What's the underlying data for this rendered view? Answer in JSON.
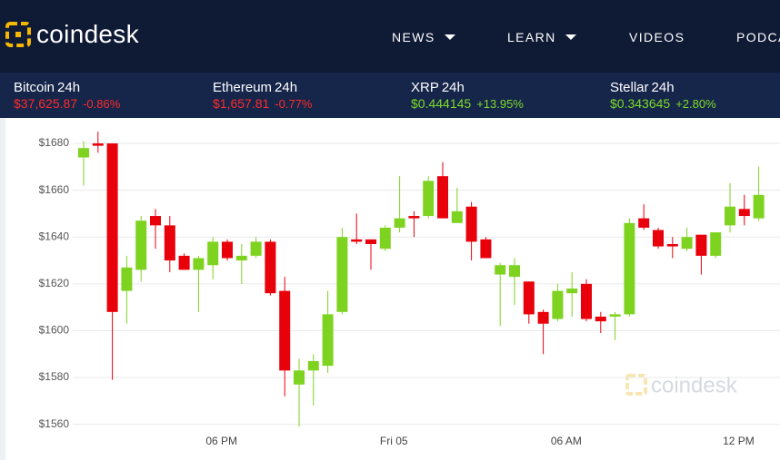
{
  "header": {
    "logo": "coindesk",
    "nav": [
      "NEWS",
      "LEARN",
      "VIDEOS",
      "PODCASTS"
    ]
  },
  "tickers": [
    {
      "name": "Bitcoin",
      "period": "24h",
      "price": "$37,625.87",
      "change": "-0.86%"
    },
    {
      "name": "Ethereum",
      "period": "24h",
      "price": "$1,657.81",
      "change": "-0.77%"
    },
    {
      "name": "XRP",
      "period": "24h",
      "price": "$0.444145",
      "change": "+13.95%"
    },
    {
      "name": "Stellar",
      "period": "24h",
      "price": "$0.343645",
      "change": "+2.80%"
    }
  ],
  "chart_data": {
    "type": "candlestick",
    "watermark": "coindesk",
    "categories": [
      null,
      null,
      null,
      null,
      null,
      null,
      null,
      null,
      null,
      null,
      "06 PM",
      null,
      null,
      null,
      null,
      null,
      null,
      null,
      null,
      null,
      null,
      null,
      "Fri 05",
      null,
      null,
      null,
      null,
      null,
      null,
      null,
      null,
      null,
      null,
      null,
      "06 AM",
      null,
      null,
      null,
      null,
      null,
      null,
      null,
      null,
      null,
      null,
      null,
      "12 PM",
      null
    ],
    "open": [
      1674,
      1680,
      1680,
      1617,
      1626,
      1649,
      1645,
      1632,
      1626,
      1628,
      1638,
      1630,
      1632,
      1638,
      1617,
      1577,
      1583,
      1585,
      1608,
      1639,
      1639,
      1635,
      1644,
      1649,
      1649,
      1666,
      1646,
      1653,
      1639,
      1624,
      1623,
      1621,
      1608,
      1605,
      1616,
      1620,
      1606,
      1606,
      1607,
      1648,
      1643,
      1637,
      1635,
      1641,
      1632,
      1645,
      1652,
      1648
    ],
    "high": [
      1681,
      1685,
      1680,
      1632,
      1649,
      1652,
      1649,
      1633,
      1632,
      1640,
      1639,
      1637,
      1640,
      1639,
      1623,
      1588,
      1590,
      1617,
      1644,
      1650,
      1639,
      1645,
      1666,
      1651,
      1666,
      1672,
      1661,
      1655,
      1640,
      1629,
      1631,
      1621,
      1609,
      1620,
      1625,
      1622,
      1608,
      1608,
      1648,
      1654,
      1644,
      1640,
      1644,
      1641,
      1642,
      1663,
      1658,
      1670
    ],
    "low": [
      1662,
      1676,
      1579,
      1603,
      1621,
      1635,
      1625,
      1626,
      1608,
      1622,
      1630,
      1620,
      1631,
      1615,
      1572,
      1559,
      1568,
      1582,
      1607,
      1637,
      1626,
      1634,
      1642,
      1640,
      1648,
      1648,
      1646,
      1630,
      1631,
      1602,
      1611,
      1603,
      1590,
      1604,
      1606,
      1604,
      1599,
      1596,
      1606,
      1643,
      1635,
      1631,
      1634,
      1624,
      1631,
      1642,
      1645,
      1647
    ],
    "close": [
      1678,
      1679,
      1608,
      1627,
      1647,
      1645,
      1630,
      1626,
      1631,
      1638,
      1631,
      1632,
      1638,
      1616,
      1583,
      1583,
      1587,
      1607,
      1640,
      1638,
      1637,
      1644,
      1648,
      1648,
      1664,
      1648,
      1651,
      1638,
      1631,
      1628,
      1628,
      1607,
      1603,
      1617,
      1618,
      1605,
      1604,
      1607,
      1646,
      1644,
      1636,
      1636,
      1640,
      1632,
      1642,
      1653,
      1649,
      1658
    ],
    "up_color": "#7ed321",
    "down_color": "#e8000b",
    "ylim": [
      1556,
      1687
    ],
    "yticks": [
      {
        "value": 1560,
        "label": "$1560"
      },
      {
        "value": 1580,
        "label": "$1580"
      },
      {
        "value": 1600,
        "label": "$1600"
      },
      {
        "value": 1620,
        "label": "$1620"
      },
      {
        "value": 1640,
        "label": "$1640"
      },
      {
        "value": 1660,
        "label": "$1660"
      },
      {
        "value": 1680,
        "label": "$1680"
      }
    ],
    "grid": true
  }
}
